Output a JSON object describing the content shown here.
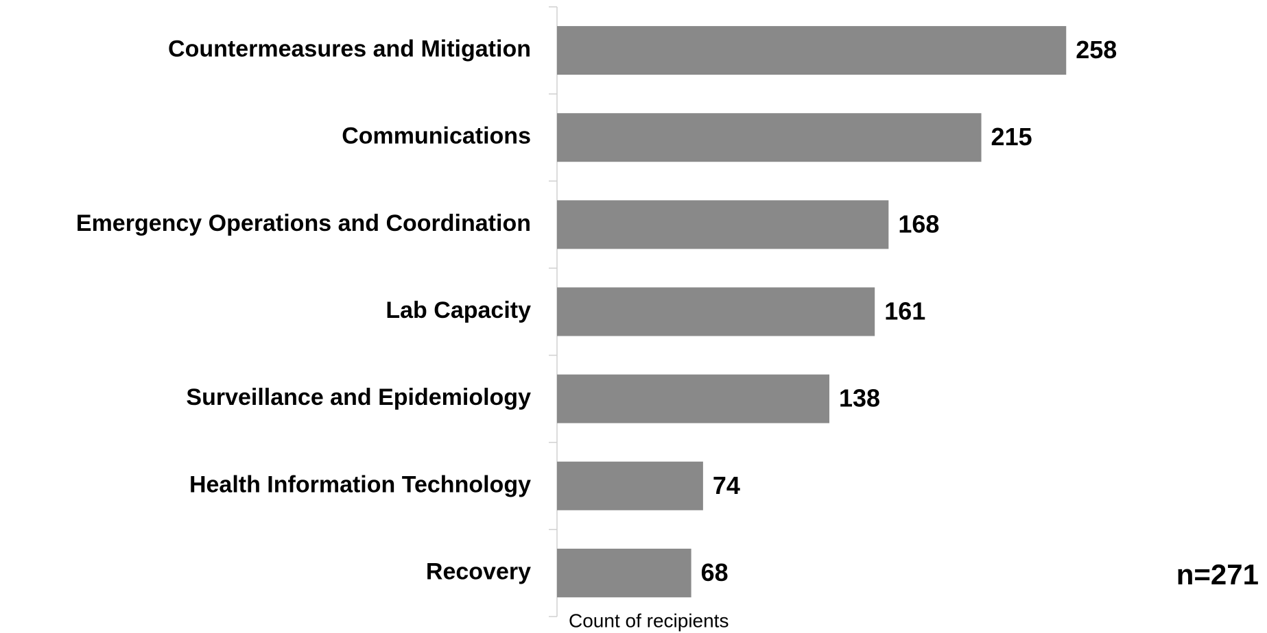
{
  "chart_data": {
    "type": "barh",
    "categories": [
      "Countermeasures and Mitigation",
      "Communications",
      "Emergency Operations and Coordination",
      "Lab Capacity",
      "Surveillance and Epidemiology",
      "Health Information Technology",
      "Recovery"
    ],
    "values": [
      258,
      215,
      168,
      161,
      138,
      74,
      68
    ],
    "color": "#898989",
    "xlabel": "Count of recipients",
    "annotation": "n=271"
  }
}
